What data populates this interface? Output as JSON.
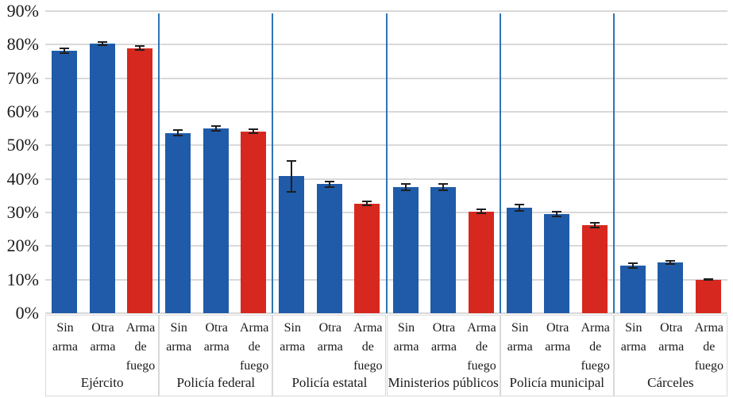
{
  "chart_data": {
    "type": "bar",
    "title": "",
    "xlabel": "",
    "ylabel": "",
    "ylim": [
      0,
      90
    ],
    "grid": true,
    "legend": "none",
    "ytick_percent": [
      0,
      10,
      20,
      30,
      40,
      50,
      60,
      70,
      80,
      90
    ],
    "ytick_labels": [
      "0%",
      "10%",
      "20%",
      "30%",
      "40%",
      "50%",
      "60%",
      "70%",
      "80%",
      "90%"
    ],
    "bar_categories": [
      "Sin arma",
      "Otra arma",
      "Arma de fuego"
    ],
    "bar_category_lines": [
      [
        "Sin",
        "arma"
      ],
      [
        "Otra",
        "arma"
      ],
      [
        "Arma",
        "de",
        "fuego"
      ]
    ],
    "groups": [
      {
        "name": "Ejército",
        "values": [
          78.2,
          80.3,
          79.0
        ],
        "errors": [
          1.0,
          0.8,
          0.8
        ]
      },
      {
        "name": "Policía federal",
        "values": [
          53.7,
          55.0,
          54.2
        ],
        "errors": [
          1.1,
          1.0,
          0.8
        ]
      },
      {
        "name": "Policía estatal",
        "values": [
          40.8,
          38.4,
          32.7
        ],
        "errors": [
          4.8,
          1.1,
          0.8
        ]
      },
      {
        "name": "Ministerios públicos",
        "values": [
          37.5,
          37.5,
          30.3
        ],
        "errors": [
          1.2,
          1.2,
          0.9
        ]
      },
      {
        "name": "Policía municipal",
        "values": [
          31.5,
          29.5,
          26.2
        ],
        "errors": [
          1.2,
          1.0,
          1.0
        ]
      },
      {
        "name": "Cárceles",
        "values": [
          14.2,
          15.1,
          10.0
        ],
        "errors": [
          1.0,
          0.8,
          0.4
        ]
      }
    ],
    "bar_colors": [
      "#1F5BA8",
      "#1F5BA8",
      "#D6281E"
    ],
    "colors": {
      "blue_bar": "#1F5BA8",
      "red_bar": "#D6281E",
      "separator_line": "#2E74B5",
      "gridline": "#D9D9D9",
      "error_bar": "#1F1F1F",
      "text": "#1A1A1A",
      "background": "#FFFFFF"
    }
  }
}
